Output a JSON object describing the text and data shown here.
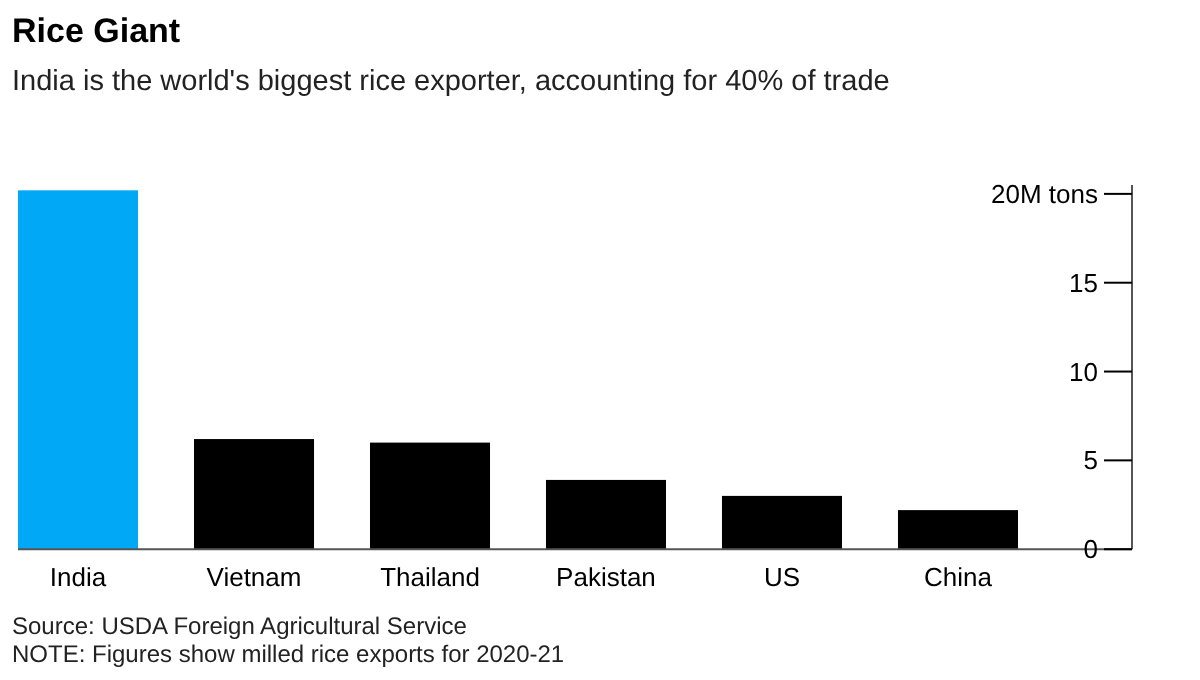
{
  "chart_data": {
    "type": "bar",
    "title": "Rice Giant",
    "subtitle": "India is the world's biggest rice exporter, accounting for 40% of trade",
    "categories": [
      "India",
      "Vietnam",
      "Thailand",
      "Pakistan",
      "US",
      "China"
    ],
    "values": [
      20.2,
      6.2,
      6.0,
      3.9,
      3.0,
      2.2
    ],
    "colors": [
      "#00a8f6",
      "#000000",
      "#000000",
      "#000000",
      "#000000",
      "#000000"
    ],
    "ylim": [
      0,
      20.5
    ],
    "yticks": [
      0,
      5,
      10,
      15,
      {
        "value": 20,
        "label": "20M tons"
      }
    ],
    "grid": false,
    "annotations": [
      "Source: USDA Foreign Agricultural Service",
      "NOTE: Figures show milled rice exports for 2020-21"
    ]
  }
}
